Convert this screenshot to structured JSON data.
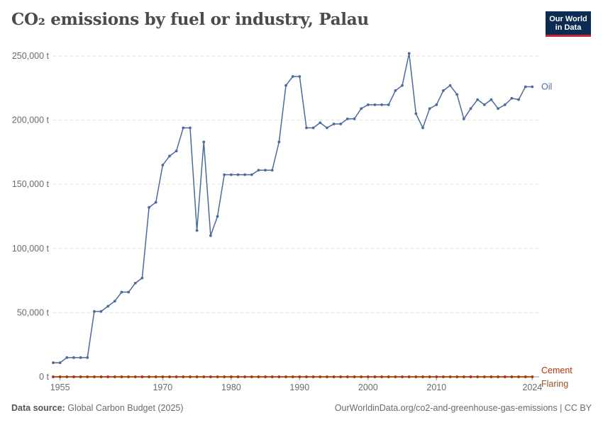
{
  "title": "CO₂ emissions by fuel or industry, Palau",
  "logo": {
    "line1": "Our World",
    "line2": "in Data"
  },
  "footer": {
    "source_label": "Data source:",
    "source_value": "Global Carbon Budget (2025)",
    "right": "OurWorldinData.org/co2-and-greenhouse-gas-emissions | CC BY"
  },
  "chart_data": {
    "type": "line",
    "xlabel": "",
    "ylabel": "",
    "xlim": [
      1954,
      2025
    ],
    "ylim": [
      0,
      250000
    ],
    "x_ticks": [
      1955,
      1970,
      1980,
      1990,
      2000,
      2010,
      2024
    ],
    "y_ticks": [
      {
        "value": 0,
        "label": "0 t"
      },
      {
        "value": 50000,
        "label": "50,000 t"
      },
      {
        "value": 100000,
        "label": "100,000 t"
      },
      {
        "value": 150000,
        "label": "150,000 t"
      },
      {
        "value": 200000,
        "label": "200,000 t"
      },
      {
        "value": 250000,
        "label": "250,000 t"
      }
    ],
    "grid": true,
    "legend": "inline-right",
    "colors": {
      "oil": "#4c6a9c",
      "cement": "#b13507",
      "flaring": "#9a5129"
    },
    "x": [
      1954,
      1955,
      1956,
      1957,
      1958,
      1959,
      1960,
      1961,
      1962,
      1963,
      1964,
      1965,
      1966,
      1967,
      1968,
      1969,
      1970,
      1971,
      1972,
      1973,
      1974,
      1975,
      1976,
      1977,
      1978,
      1979,
      1980,
      1981,
      1982,
      1983,
      1984,
      1985,
      1986,
      1987,
      1988,
      1989,
      1990,
      1991,
      1992,
      1993,
      1994,
      1995,
      1996,
      1997,
      1998,
      1999,
      2000,
      2001,
      2002,
      2003,
      2004,
      2005,
      2006,
      2007,
      2008,
      2009,
      2010,
      2011,
      2012,
      2013,
      2014,
      2015,
      2016,
      2017,
      2018,
      2019,
      2020,
      2021,
      2022,
      2023,
      2024
    ],
    "series": [
      {
        "name": "Oil",
        "values": [
          11000,
          11000,
          15000,
          15000,
          15000,
          15000,
          51000,
          51000,
          55000,
          59000,
          66000,
          66000,
          73000,
          77000,
          132000,
          136000,
          165000,
          172000,
          176000,
          194000,
          194000,
          114000,
          183000,
          110000,
          125000,
          157500,
          157500,
          157500,
          157500,
          157500,
          161000,
          161000,
          161000,
          183000,
          227000,
          234000,
          234000,
          194000,
          194000,
          198000,
          194000,
          197000,
          197000,
          201000,
          201000,
          209000,
          212000,
          212000,
          212000,
          212000,
          223000,
          227000,
          252000,
          205000,
          194000,
          209000,
          212000,
          223000,
          227000,
          220000,
          201000,
          209000,
          216000,
          212000,
          216000,
          209000,
          212000,
          217000,
          216000,
          226000,
          226000
        ]
      },
      {
        "name": "Cement",
        "values": [
          0,
          0,
          0,
          0,
          0,
          0,
          0,
          0,
          0,
          0,
          0,
          0,
          0,
          0,
          0,
          0,
          0,
          0,
          0,
          0,
          0,
          0,
          0,
          0,
          0,
          0,
          0,
          0,
          0,
          0,
          0,
          0,
          0,
          0,
          0,
          0,
          0,
          0,
          0,
          0,
          0,
          0,
          0,
          0,
          0,
          0,
          0,
          0,
          0,
          0,
          0,
          0,
          0,
          0,
          0,
          0,
          0,
          0,
          0,
          0,
          0,
          0,
          0,
          0,
          0,
          0,
          0,
          0,
          0,
          0,
          0
        ]
      },
      {
        "name": "Flaring",
        "values": [
          0,
          0,
          0,
          0,
          0,
          0,
          0,
          0,
          0,
          0,
          0,
          0,
          0,
          0,
          0,
          0,
          0,
          0,
          0,
          0,
          0,
          0,
          0,
          0,
          0,
          0,
          0,
          0,
          0,
          0,
          0,
          0,
          0,
          0,
          0,
          0,
          0,
          0,
          0,
          0,
          0,
          0,
          0,
          0,
          0,
          0,
          0,
          0,
          0,
          0,
          0,
          0,
          0,
          0,
          0,
          0,
          0,
          0,
          0,
          0,
          0,
          0,
          0,
          0,
          0,
          0,
          0,
          0,
          0,
          0,
          0
        ]
      }
    ]
  }
}
